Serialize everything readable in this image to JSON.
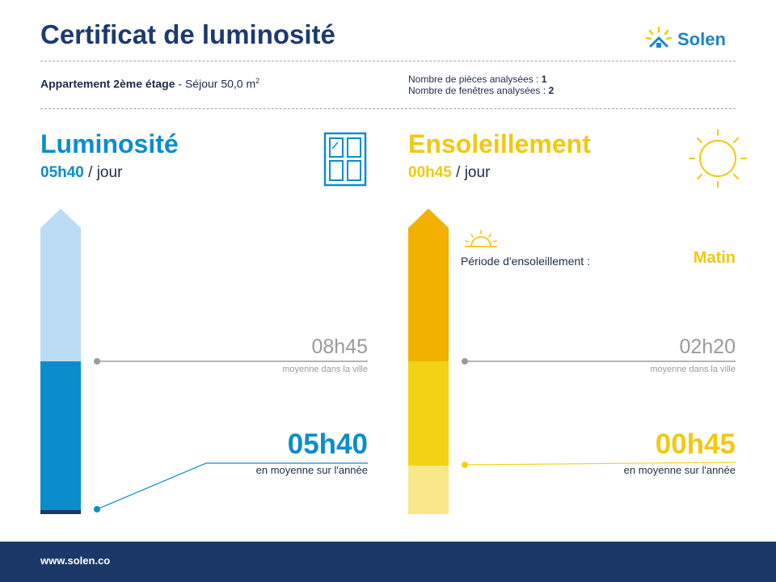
{
  "header": {
    "title": "Certificat de luminosité",
    "brand": "Solen"
  },
  "flat": {
    "name": "Appartement 2ème étage",
    "separator": " - ",
    "room": "Séjour 50,0 m",
    "room_sup": "2",
    "rooms_label": "Nombre de pièces analysées : ",
    "rooms_value": "1",
    "windows_label": "Nombre de fenêtres analysées : ",
    "windows_value": "2"
  },
  "luminosite": {
    "heading": "Luminosité",
    "value": "05h40",
    "per": " / jour",
    "city_value": "08h45",
    "city_label": "moyenne dans la ville",
    "avg_value": "05h40",
    "avg_label": "en moyenne sur l'année",
    "icon": "window-icon",
    "colors": {
      "main": "#0b8dcc",
      "light": "#bcdcf6",
      "dark": "#1b3868"
    }
  },
  "ensoleillement": {
    "heading": "Ensoleillement",
    "value": "00h45",
    "per": " / jour",
    "period_label": "Période d'ensoleillement :",
    "period_value": "Matin",
    "city_value": "02h20",
    "city_label": "moyenne dans la ville",
    "avg_value": "00h45",
    "avg_label": "en moyenne sur l'année",
    "icon": "sun-icon",
    "colors": {
      "main": "#f2d214",
      "top": "#f2b000",
      "light": "#f9e88a"
    }
  },
  "footer": {
    "url": "www.solen.co"
  }
}
